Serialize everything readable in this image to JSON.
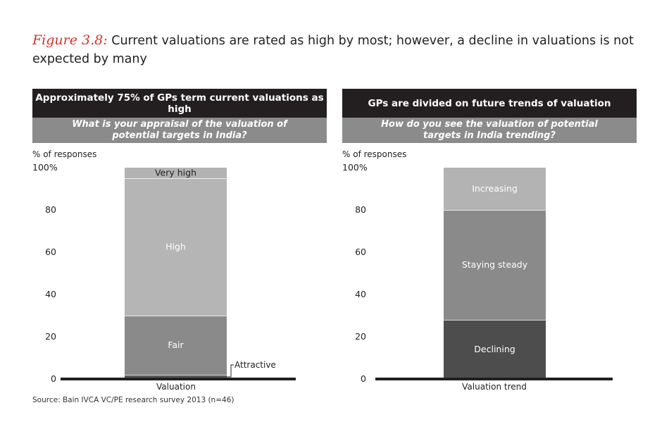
{
  "figure": {
    "label": "Figure 3.8:",
    "title": "Current valuations are rated as high by most; however, a decline in valuations is not expected by many"
  },
  "panels": [
    {
      "header": "Approximately 75% of GPs term current valuations as high",
      "subheader": "What is your appraisal of the valuation of potential targets in India?"
    },
    {
      "header": "GPs are divided on future trends of valuation",
      "subheader": "How do you see the valuation of potential targets in India trending?"
    }
  ],
  "source": "Source: Bain IVCA VC/PE research survey 2013 (n=46)",
  "colors": {
    "very_high": "#b3b3b3",
    "high": "#b5b5b5",
    "fair": "#8a8a8a",
    "attractive": "#5a5a5a",
    "increasing": "#b3b3b3",
    "staying_steady": "#8a8a8a",
    "declining": "#4d4d4d"
  },
  "chart_data": [
    {
      "type": "bar",
      "stacked": true,
      "ylabel": "% of responses",
      "ylim": [
        0,
        100
      ],
      "yticks": [
        "100%",
        "80",
        "60",
        "40",
        "20",
        "0"
      ],
      "categories": [
        "Valuation"
      ],
      "series": [
        {
          "name": "Attractive",
          "values": [
            2
          ],
          "color_key": "attractive",
          "label_position": "callout"
        },
        {
          "name": "Fair",
          "values": [
            28
          ],
          "color_key": "fair",
          "label_position": "inside"
        },
        {
          "name": "High",
          "values": [
            65
          ],
          "color_key": "high",
          "label_position": "inside"
        },
        {
          "name": "Very high",
          "values": [
            5
          ],
          "color_key": "very_high",
          "label_position": "inside-dark"
        }
      ]
    },
    {
      "type": "bar",
      "stacked": true,
      "ylabel": "% of responses",
      "ylim": [
        0,
        100
      ],
      "yticks": [
        "100%",
        "80",
        "60",
        "40",
        "20",
        "0"
      ],
      "categories": [
        "Valuation trend"
      ],
      "series": [
        {
          "name": "Declining",
          "values": [
            28
          ],
          "color_key": "declining",
          "label_position": "inside"
        },
        {
          "name": "Staying steady",
          "values": [
            52
          ],
          "color_key": "staying_steady",
          "label_position": "inside"
        },
        {
          "name": "Increasing",
          "values": [
            20
          ],
          "color_key": "increasing",
          "label_position": "inside"
        }
      ]
    }
  ]
}
